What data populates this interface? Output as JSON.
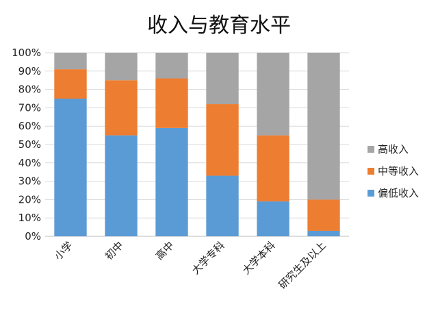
{
  "chart_data": {
    "type": "bar",
    "stacked": true,
    "title": "收入与教育水平",
    "xlabel": "",
    "ylabel": "",
    "ylim": [
      0,
      100
    ],
    "yticks": [
      "0%",
      "10%",
      "20%",
      "30%",
      "40%",
      "50%",
      "60%",
      "70%",
      "80%",
      "90%",
      "100%"
    ],
    "grid": true,
    "legend_position": "right",
    "categories": [
      "小学",
      "初中",
      "高中",
      "大学专科",
      "大学本科",
      "研究生及以上"
    ],
    "series": [
      {
        "name": "偏低收入",
        "color": "#5B9BD5",
        "values": [
          75,
          55,
          59,
          33,
          19,
          3
        ]
      },
      {
        "name": "中等收入",
        "color": "#ED7D31",
        "values": [
          16,
          30,
          27,
          39,
          36,
          17
        ]
      },
      {
        "name": "高收入",
        "color": "#A5A5A5",
        "values": [
          9,
          15,
          14,
          28,
          45,
          80
        ]
      }
    ]
  }
}
